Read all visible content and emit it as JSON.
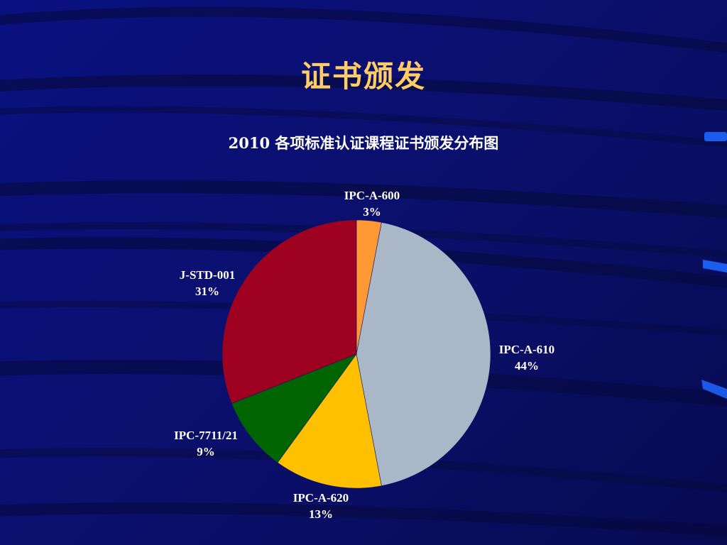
{
  "slide": {
    "title": "证书颁发"
  },
  "colors": {
    "background": "#0b1270",
    "title": "#ffcc66",
    "text": "#ffffff"
  },
  "chart_data": {
    "type": "pie",
    "title": "2010 各项标准认证课程证书颁发分布图",
    "slices": [
      {
        "label": "IPC-A-600",
        "percent_text": "3%",
        "value": 3,
        "color": "#ff9933"
      },
      {
        "label": "IPC-A-610",
        "percent_text": "44%",
        "value": 44,
        "color": "#a9b7c6"
      },
      {
        "label": "IPC-A-620",
        "percent_text": "13%",
        "value": 13,
        "color": "#ffc000"
      },
      {
        "label": "IPC-7711/21",
        "percent_text": "9%",
        "value": 9,
        "color": "#006400"
      },
      {
        "label": "J-STD-001",
        "percent_text": "31%",
        "value": 31,
        "color": "#9e0020"
      }
    ]
  }
}
